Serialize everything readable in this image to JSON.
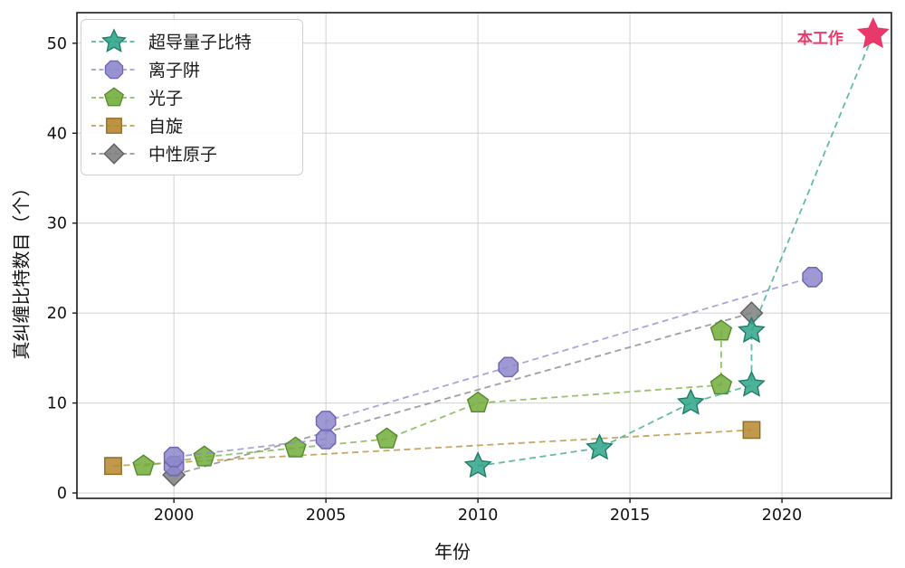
{
  "chart_data": {
    "type": "scatter",
    "title": "",
    "xlabel": "年份",
    "ylabel": "真纠缠比特数目（个）",
    "xlim": [
      1996.81,
      2023.6
    ],
    "ylim": [
      -0.6,
      53.4
    ],
    "x_ticks": [
      2000,
      2005,
      2010,
      2015,
      2020
    ],
    "y_ticks": [
      0,
      10,
      20,
      30,
      40,
      50
    ],
    "grid": true,
    "grid_color": "#d0d0d0",
    "legend_position": "upper-left",
    "series": [
      {
        "name": "超导量子比特",
        "marker": "star",
        "color": "#2fa489",
        "edge": "#1f7a66",
        "points": [
          [
            2010,
            3
          ],
          [
            2014,
            5
          ],
          [
            2017,
            10
          ],
          [
            2019,
            12
          ],
          [
            2019,
            18
          ],
          [
            2023,
            51
          ]
        ]
      },
      {
        "name": "离子阱",
        "marker": "octagon",
        "color": "#8d87ca",
        "edge": "#6c64b5",
        "points": [
          [
            2000,
            3
          ],
          [
            2000,
            4
          ],
          [
            2005,
            6
          ],
          [
            2005,
            8
          ],
          [
            2011,
            14
          ],
          [
            2021,
            24
          ]
        ]
      },
      {
        "name": "光子",
        "marker": "pentagon",
        "color": "#72ad3c",
        "edge": "#558a28",
        "points": [
          [
            1999,
            3
          ],
          [
            2001,
            4
          ],
          [
            2004,
            5
          ],
          [
            2007,
            6
          ],
          [
            2010,
            10
          ],
          [
            2018,
            12
          ],
          [
            2018,
            18
          ]
        ]
      },
      {
        "name": "自旋",
        "marker": "square",
        "color": "#b5872f",
        "edge": "#8f6a23",
        "points": [
          [
            1998,
            3
          ],
          [
            2019,
            7
          ]
        ]
      },
      {
        "name": "中性原子",
        "marker": "diamond",
        "color": "#7f7f7f",
        "edge": "#5e5e5e",
        "points": [
          [
            2000,
            2
          ],
          [
            2019,
            20
          ]
        ]
      }
    ],
    "annotation": {
      "text": "本工作",
      "x": 2023,
      "y": 51,
      "color": "#e8396b",
      "marker": "star",
      "series": "超导量子比特"
    }
  }
}
